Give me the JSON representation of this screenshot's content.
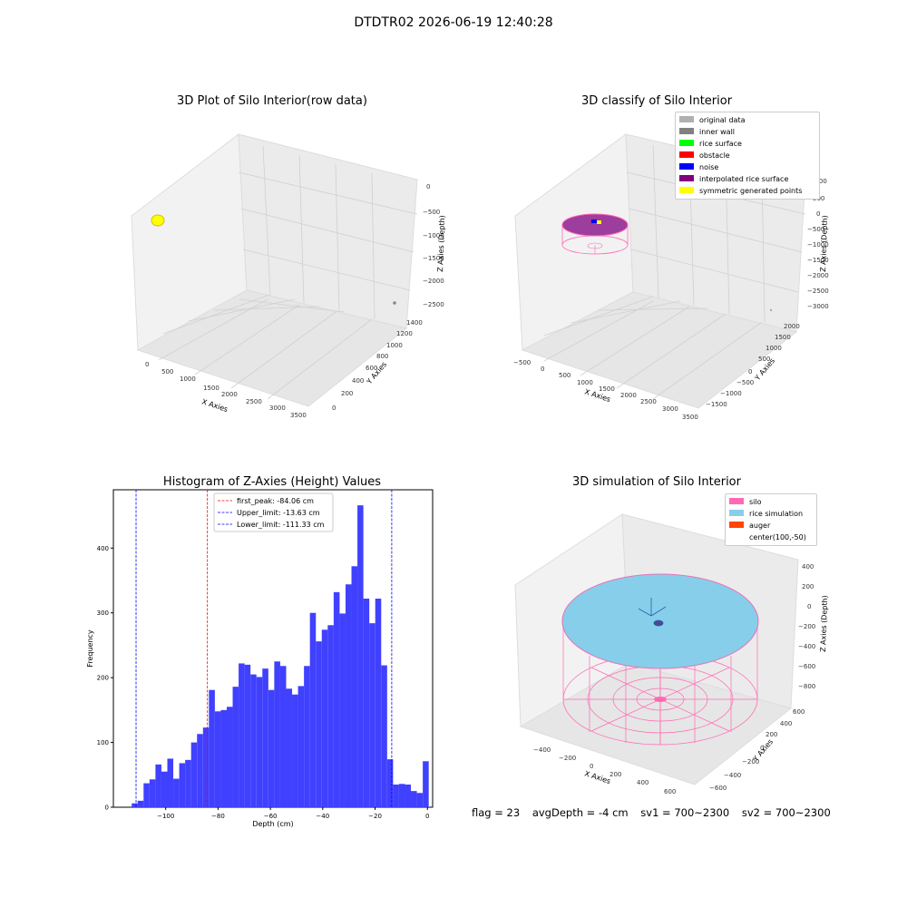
{
  "figure_title": "DTDTR02 2026-06-19 12:40:28",
  "colors": {
    "pane": "#f2f2f2",
    "grid": "#d8d8d8",
    "yellow": "#ffff00",
    "gray_point": "#888888",
    "silo": "#ff69b4",
    "rice": "#87ceeb",
    "auger": "#ff4500",
    "hist": "#4040ff",
    "red_line": "#ff0000",
    "blue_line": "#0000ff"
  },
  "panel_raw": {
    "title": "3D Plot of Silo Interior(row data)",
    "x_label": "X Axies",
    "y_label": "Y Axies",
    "z_label": "Z Axies (Depth)",
    "x_ticks": [
      "0",
      "500",
      "1000",
      "1500",
      "2000",
      "2500",
      "3000",
      "3500"
    ],
    "y_ticks": [
      "0",
      "200",
      "400",
      "600",
      "800",
      "1000",
      "1200",
      "1400"
    ],
    "z_ticks": [
      "0",
      "−500",
      "−1000",
      "−1500",
      "−2000",
      "−2500"
    ]
  },
  "panel_classify": {
    "title": "3D classify of Silo Interior",
    "x_label": "X Axies",
    "y_label": "Y Axies",
    "z_label": "Z Axies (Depth)",
    "x_ticks": [
      "−500",
      "0",
      "500",
      "1000",
      "1500",
      "2000",
      "2500",
      "3000",
      "3500"
    ],
    "y_ticks": [
      "−1500",
      "−1000",
      "−500",
      "0",
      "500",
      "1000",
      "1500",
      "2000"
    ],
    "z_ticks": [
      "1000",
      "500",
      "0",
      "−500",
      "−1000",
      "−1500",
      "−2000",
      "−2500",
      "−3000"
    ],
    "legend": [
      {
        "label": "original data",
        "color": "#b0b0b0"
      },
      {
        "label": "inner wall",
        "color": "#808080"
      },
      {
        "label": "rice surface",
        "color": "#00ff00"
      },
      {
        "label": "obstacle",
        "color": "#ff0000"
      },
      {
        "label": "noise",
        "color": "#0000ff"
      },
      {
        "label": "interpolated rice surface",
        "color": "#800080"
      },
      {
        "label": "symmetric generated points",
        "color": "#ffff00"
      }
    ]
  },
  "panel_sim": {
    "title": "3D simulation of Silo Interior",
    "x_label": "X Axies",
    "y_label": "Y Axies",
    "z_label": "Z Axies (Depth)",
    "x_ticks": [
      "−400",
      "−200",
      "0",
      "200",
      "400",
      "600"
    ],
    "y_ticks": [
      "−600",
      "−400",
      "−200",
      "0",
      "200",
      "400",
      "600"
    ],
    "z_ticks": [
      "400",
      "200",
      "0",
      "−200",
      "−400",
      "−600",
      "−800"
    ],
    "legend": [
      {
        "label": "silo",
        "color": "#ff69b4"
      },
      {
        "label": "rice simulation",
        "color": "#87ceeb"
      },
      {
        "label": "auger",
        "color": "#ff4500"
      },
      {
        "label": "center(100,-50)",
        "color": ""
      }
    ]
  },
  "footer": {
    "flag": "flag = 23",
    "avg_depth": "avgDepth = -4 cm",
    "sv1": "sv1 = 700~2300",
    "sv2": "sv2 = 700~2300"
  },
  "chart_data": [
    {
      "type": "bar",
      "title": "Histogram of Z-Axies (Height) Values",
      "xlabel": "Depth (cm)",
      "ylabel": "Frequency",
      "x_ticks": [
        -100,
        -80,
        -60,
        -40,
        -20,
        0
      ],
      "x_tick_labels": [
        "−100",
        "−80",
        "−60",
        "−40",
        "−20",
        "0"
      ],
      "y_ticks": [
        0,
        100,
        200,
        300,
        400
      ],
      "xlim": [
        -120,
        2
      ],
      "ylim": [
        0,
        490
      ],
      "bin_start": -113,
      "bin_width": 2.27,
      "values": [
        6,
        10,
        37,
        43,
        66,
        55,
        75,
        44,
        68,
        73,
        100,
        113,
        123,
        181,
        148,
        150,
        155,
        186,
        222,
        220,
        205,
        201,
        214,
        181,
        225,
        218,
        183,
        174,
        187,
        218,
        300,
        256,
        274,
        281,
        332,
        299,
        344,
        372,
        466,
        322,
        284,
        322,
        219,
        74,
        35,
        36,
        35,
        25,
        22,
        71
      ],
      "vlines": [
        {
          "name": "first_peak",
          "x": -84.06,
          "label": "first_peak: -84.06 cm",
          "color": "#ff0000"
        },
        {
          "name": "Upper_limit",
          "x": -13.63,
          "label": "Upper_limit: -13.63 cm",
          "color": "#0000ff"
        },
        {
          "name": "Lower_limit",
          "x": -111.33,
          "label": "Lower_limit: -111.33 cm",
          "color": "#0000ff"
        }
      ],
      "legend_position": "top-center"
    }
  ]
}
